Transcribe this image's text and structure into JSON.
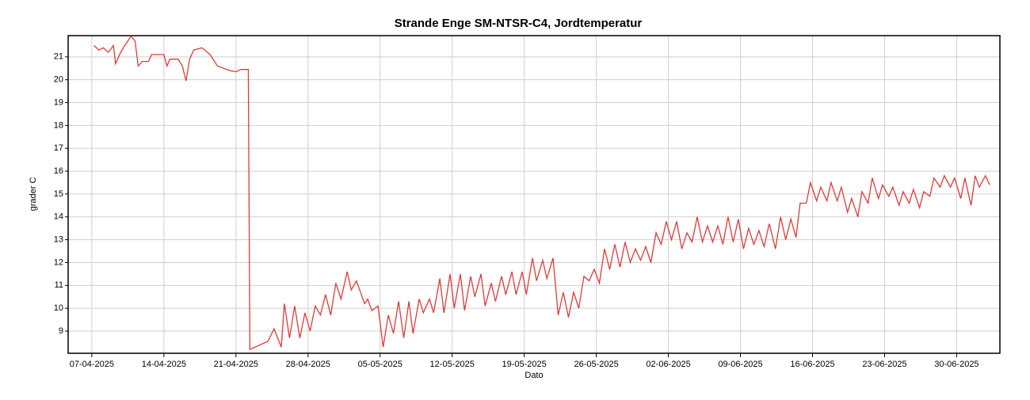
{
  "chart_data": {
    "type": "line",
    "title": "Strande Enge SM-NTSR-C4, Jordtemperatur",
    "x_label": "Dato",
    "y_label": "grader C",
    "color": "#e03a3a",
    "grid": true,
    "xlim": [
      -2.3,
      88.2
    ],
    "ylim": [
      8.03,
      21.93
    ],
    "xticks": [
      {
        "value": 0,
        "label": "07-04-2025"
      },
      {
        "value": 7,
        "label": "14-04-2025"
      },
      {
        "value": 14,
        "label": "21-04-2025"
      },
      {
        "value": 21,
        "label": "28-04-2025"
      },
      {
        "value": 28,
        "label": "05-05-2025"
      },
      {
        "value": 35,
        "label": "12-05-2025"
      },
      {
        "value": 42,
        "label": "19-05-2025"
      },
      {
        "value": 49,
        "label": "26-05-2025"
      },
      {
        "value": 56,
        "label": "02-06-2025"
      },
      {
        "value": 63,
        "label": "09-06-2025"
      },
      {
        "value": 70,
        "label": "16-06-2025"
      },
      {
        "value": 77,
        "label": "23-06-2025"
      },
      {
        "value": 84,
        "label": "30-06-2025"
      }
    ],
    "yticks": [
      9,
      10,
      11,
      12,
      13,
      14,
      15,
      16,
      17,
      18,
      19,
      20,
      21
    ],
    "x": [
      0.2,
      0.7,
      1.1,
      1.6,
      2.1,
      2.3,
      2.8,
      3.2,
      3.8,
      4.2,
      4.5,
      4.9,
      5.5,
      5.8,
      7,
      7.3,
      7.6,
      8.4,
      8.8,
      9.15,
      9.5,
      9.9,
      10.7,
      11.5,
      12.2,
      13.4,
      14,
      14.5,
      15.2,
      15.35,
      17.1,
      17.7,
      18.4,
      18.7,
      19.2,
      19.7,
      20.2,
      20.7,
      21.2,
      21.7,
      22.2,
      22.7,
      23.2,
      23.7,
      24.2,
      24.8,
      25.2,
      25.7,
      26.5,
      26.8,
      27.2,
      27.8,
      28.3,
      28.8,
      29.3,
      29.8,
      30.3,
      30.8,
      31.2,
      31.8,
      32.2,
      32.8,
      33.2,
      33.8,
      34.2,
      34.8,
      35.2,
      35.8,
      36.2,
      36.8,
      37.2,
      37.8,
      38.2,
      38.8,
      39.2,
      39.8,
      40.2,
      40.8,
      41.2,
      41.8,
      42.2,
      42.8,
      43.2,
      43.8,
      44.2,
      44.8,
      45.3,
      45.8,
      46.3,
      46.8,
      47.3,
      47.8,
      48.3,
      48.8,
      49.3,
      49.8,
      50.3,
      50.8,
      51.3,
      51.8,
      52.3,
      52.8,
      53.3,
      53.8,
      54.3,
      54.8,
      55.3,
      55.8,
      56.3,
      56.8,
      57.3,
      57.8,
      58.3,
      58.8,
      59.3,
      59.8,
      60.3,
      60.8,
      61.3,
      61.8,
      62.3,
      62.8,
      63.3,
      63.8,
      64.3,
      64.8,
      65.3,
      65.8,
      66.4,
      66.9,
      67.4,
      67.9,
      68.4,
      68.8,
      69.4,
      69.8,
      70.4,
      70.8,
      71.4,
      71.8,
      72.4,
      72.8,
      73.4,
      73.8,
      74.4,
      74.8,
      75.4,
      75.8,
      76.4,
      76.8,
      77.4,
      77.8,
      78.4,
      78.8,
      79.4,
      79.8,
      80.4,
      80.8,
      81.4,
      81.8,
      82.4,
      82.8,
      83.4,
      83.8,
      84.4,
      84.8,
      85.4,
      85.8,
      86.2,
      86.8,
      87.2
    ],
    "values": [
      21.5,
      21.3,
      21.4,
      21.2,
      21.5,
      20.7,
      21.2,
      21.5,
      21.9,
      21.7,
      20.6,
      20.8,
      20.8,
      21.1,
      21.1,
      20.6,
      20.9,
      20.9,
      20.6,
      19.95,
      20.9,
      21.3,
      21.4,
      21.1,
      20.6,
      20.4,
      20.35,
      20.45,
      20.45,
      8.2,
      8.55,
      9.1,
      8.3,
      10.2,
      8.7,
      10.1,
      8.7,
      9.8,
      9.0,
      10.1,
      9.7,
      10.6,
      9.7,
      11.1,
      10.4,
      11.6,
      10.8,
      11.2,
      10.2,
      10.4,
      9.9,
      10.1,
      8.3,
      9.7,
      8.9,
      10.3,
      8.7,
      10.3,
      8.9,
      10.4,
      9.8,
      10.4,
      9.8,
      11.3,
      9.8,
      11.5,
      10.0,
      11.5,
      9.9,
      11.4,
      10.5,
      11.5,
      10.1,
      11.1,
      10.3,
      11.4,
      10.6,
      11.6,
      10.6,
      11.6,
      10.6,
      12.2,
      11.2,
      12.1,
      11.3,
      12.2,
      9.7,
      10.7,
      9.6,
      10.7,
      10.0,
      11.4,
      11.2,
      11.7,
      11.1,
      12.6,
      11.7,
      12.8,
      11.8,
      12.9,
      12.0,
      12.6,
      12.1,
      12.7,
      12.0,
      13.3,
      12.8,
      13.8,
      13.0,
      13.8,
      12.6,
      13.3,
      12.9,
      14.0,
      12.9,
      13.6,
      12.9,
      13.6,
      12.8,
      14.0,
      12.9,
      13.9,
      12.6,
      13.5,
      12.8,
      13.4,
      12.7,
      13.7,
      12.6,
      14.0,
      13.0,
      13.9,
      13.1,
      14.6,
      14.6,
      15.5,
      14.7,
      15.3,
      14.7,
      15.5,
      14.7,
      15.3,
      14.2,
      14.8,
      14.0,
      15.1,
      14.6,
      15.7,
      14.8,
      15.4,
      14.9,
      15.3,
      14.5,
      15.1,
      14.6,
      15.2,
      14.4,
      15.1,
      14.9,
      15.7,
      15.3,
      15.8,
      15.3,
      15.7,
      14.8,
      15.7,
      14.5,
      15.8,
      15.3,
      15.8,
      15.4
    ]
  }
}
